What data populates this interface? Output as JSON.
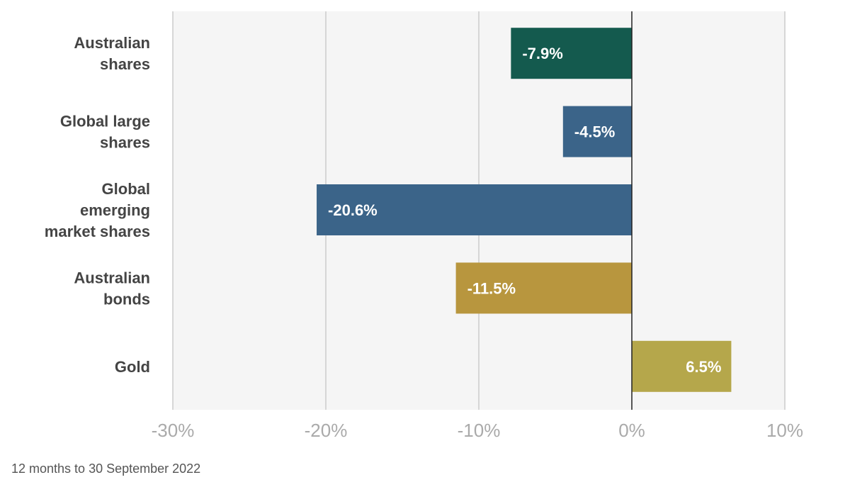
{
  "chart_data": {
    "type": "bar",
    "orientation": "horizontal",
    "categories": [
      [
        "Australian",
        "shares"
      ],
      [
        "Global large",
        "shares"
      ],
      [
        "Global",
        "emerging",
        "market shares"
      ],
      [
        "Australian",
        "bonds"
      ],
      [
        "Gold"
      ]
    ],
    "values": [
      -7.9,
      -4.5,
      -20.6,
      -11.5,
      6.5
    ],
    "value_labels": [
      "-7.9%",
      "-4.5%",
      "-20.6%",
      "-11.5%",
      "6.5%"
    ],
    "colors": [
      "#145A4E",
      "#3B6489",
      "#3B6489",
      "#B8963E",
      "#B5A74B"
    ],
    "xlim": [
      -30,
      10
    ],
    "xticks": [
      -30,
      -20,
      -10,
      0,
      10
    ],
    "xtick_labels": [
      "-30%",
      "-20%",
      "-10%",
      "0%",
      "10%"
    ],
    "grid": true,
    "plot_background": "#F5F5F5",
    "grid_color": "#CCCCCC",
    "zero_line_color": "#222222",
    "title": "",
    "xlabel": "",
    "ylabel": ""
  },
  "footnote": "12 months to 30 September 2022"
}
